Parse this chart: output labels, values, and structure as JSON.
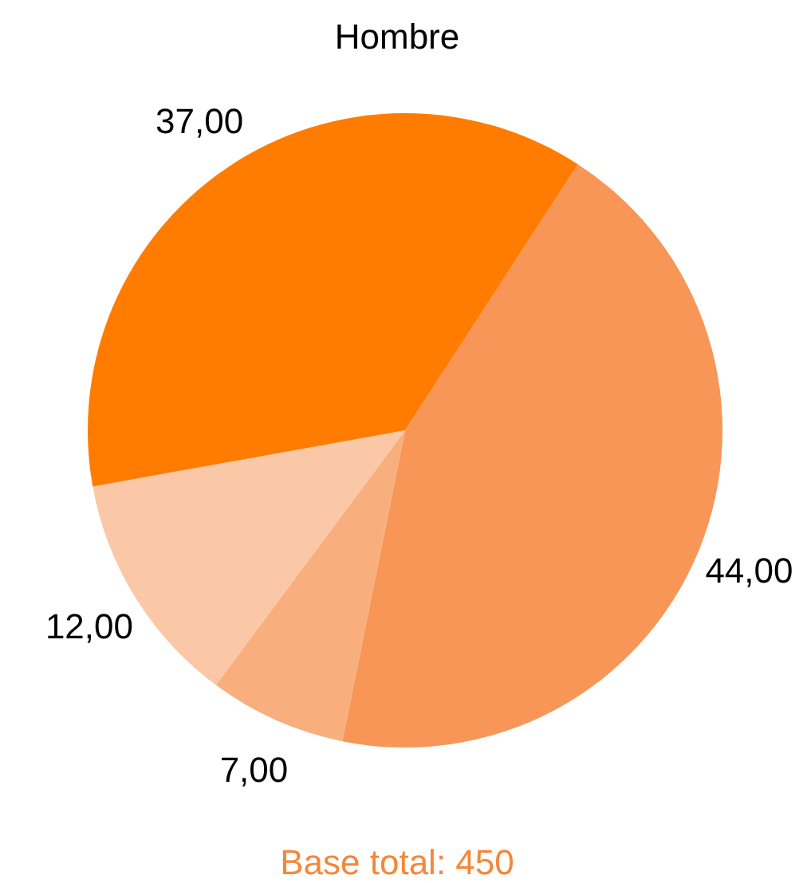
{
  "chart_data": {
    "type": "pie",
    "title": "Hombre",
    "categories": [
      null,
      null,
      null,
      null
    ],
    "values": [
      44,
      7,
      12,
      37
    ],
    "value_labels": [
      "44,00",
      "7,00",
      "12,00",
      "37,00"
    ],
    "colors": [
      "#f79656",
      "#f9ae7e",
      "#fac8a6",
      "#ff7c00"
    ],
    "legend": false,
    "annotations": [
      "Base total: 450"
    ]
  }
}
